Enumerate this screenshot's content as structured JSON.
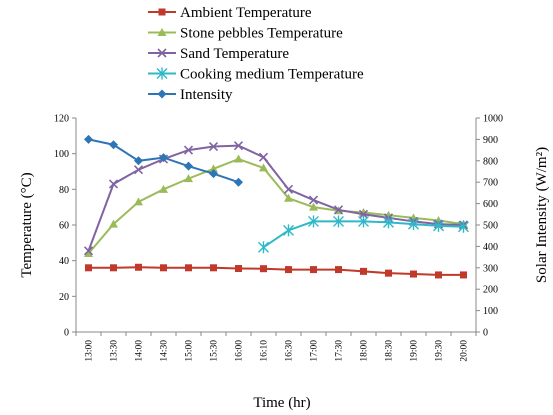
{
  "chart_data": {
    "type": "line",
    "categories": [
      "13:00",
      "13:30",
      "14:00",
      "14:30",
      "15:00",
      "15:30",
      "16:00",
      "16:10",
      "16:30",
      "17:00",
      "17:30",
      "18:00",
      "18:30",
      "19:00",
      "19:30",
      "20:00"
    ],
    "xlabel": "Time (hr)",
    "ylabel": "Temperature (°C)",
    "y2label": "Solar Intensity (W/m²)",
    "ylim": [
      0,
      120
    ],
    "y2lim": [
      0,
      1000
    ],
    "yticks": [
      "0",
      "20",
      "40",
      "60",
      "80",
      "100",
      "120"
    ],
    "y2ticks": [
      "0",
      "100",
      "200",
      "300",
      "400",
      "500",
      "600",
      "700",
      "800",
      "900",
      "1000"
    ],
    "legend_position": "top",
    "grid": false,
    "series": [
      {
        "name": "Ambient Temperature",
        "axis": "left",
        "color": "#c0392b",
        "marker": "square",
        "values": [
          36,
          36,
          36.3,
          36,
          36,
          36,
          35.6,
          35.5,
          35,
          35,
          35,
          34,
          33,
          32.5,
          32,
          32
        ]
      },
      {
        "name": "Stone pebbles Temperature",
        "axis": "left",
        "color": "#9bbb59",
        "marker": "triangle",
        "values": [
          44,
          60.5,
          73,
          80,
          86,
          91.5,
          97,
          92,
          75,
          70,
          68,
          67,
          65.5,
          64,
          62.5,
          60.5
        ]
      },
      {
        "name": "Sand Temperature",
        "axis": "left",
        "color": "#8064a2",
        "marker": "x",
        "values": [
          45.5,
          83,
          91,
          97,
          102,
          104,
          104.5,
          98,
          80,
          74,
          68.5,
          66,
          64,
          62,
          60.5,
          60
        ]
      },
      {
        "name": "Cooking medium Temperature",
        "axis": "left",
        "color": "#2eb8c8",
        "marker": "star",
        "values": [
          null,
          null,
          null,
          null,
          null,
          null,
          null,
          47.5,
          57,
          62,
          62,
          62,
          61.5,
          60.5,
          59.5,
          59
        ]
      },
      {
        "name": "Intensity",
        "axis": "right",
        "color": "#2e75b6",
        "marker": "diamond",
        "values": [
          900,
          875,
          800,
          815,
          775,
          740,
          700,
          null,
          null,
          null,
          null,
          null,
          null,
          null,
          null,
          null
        ]
      }
    ]
  }
}
